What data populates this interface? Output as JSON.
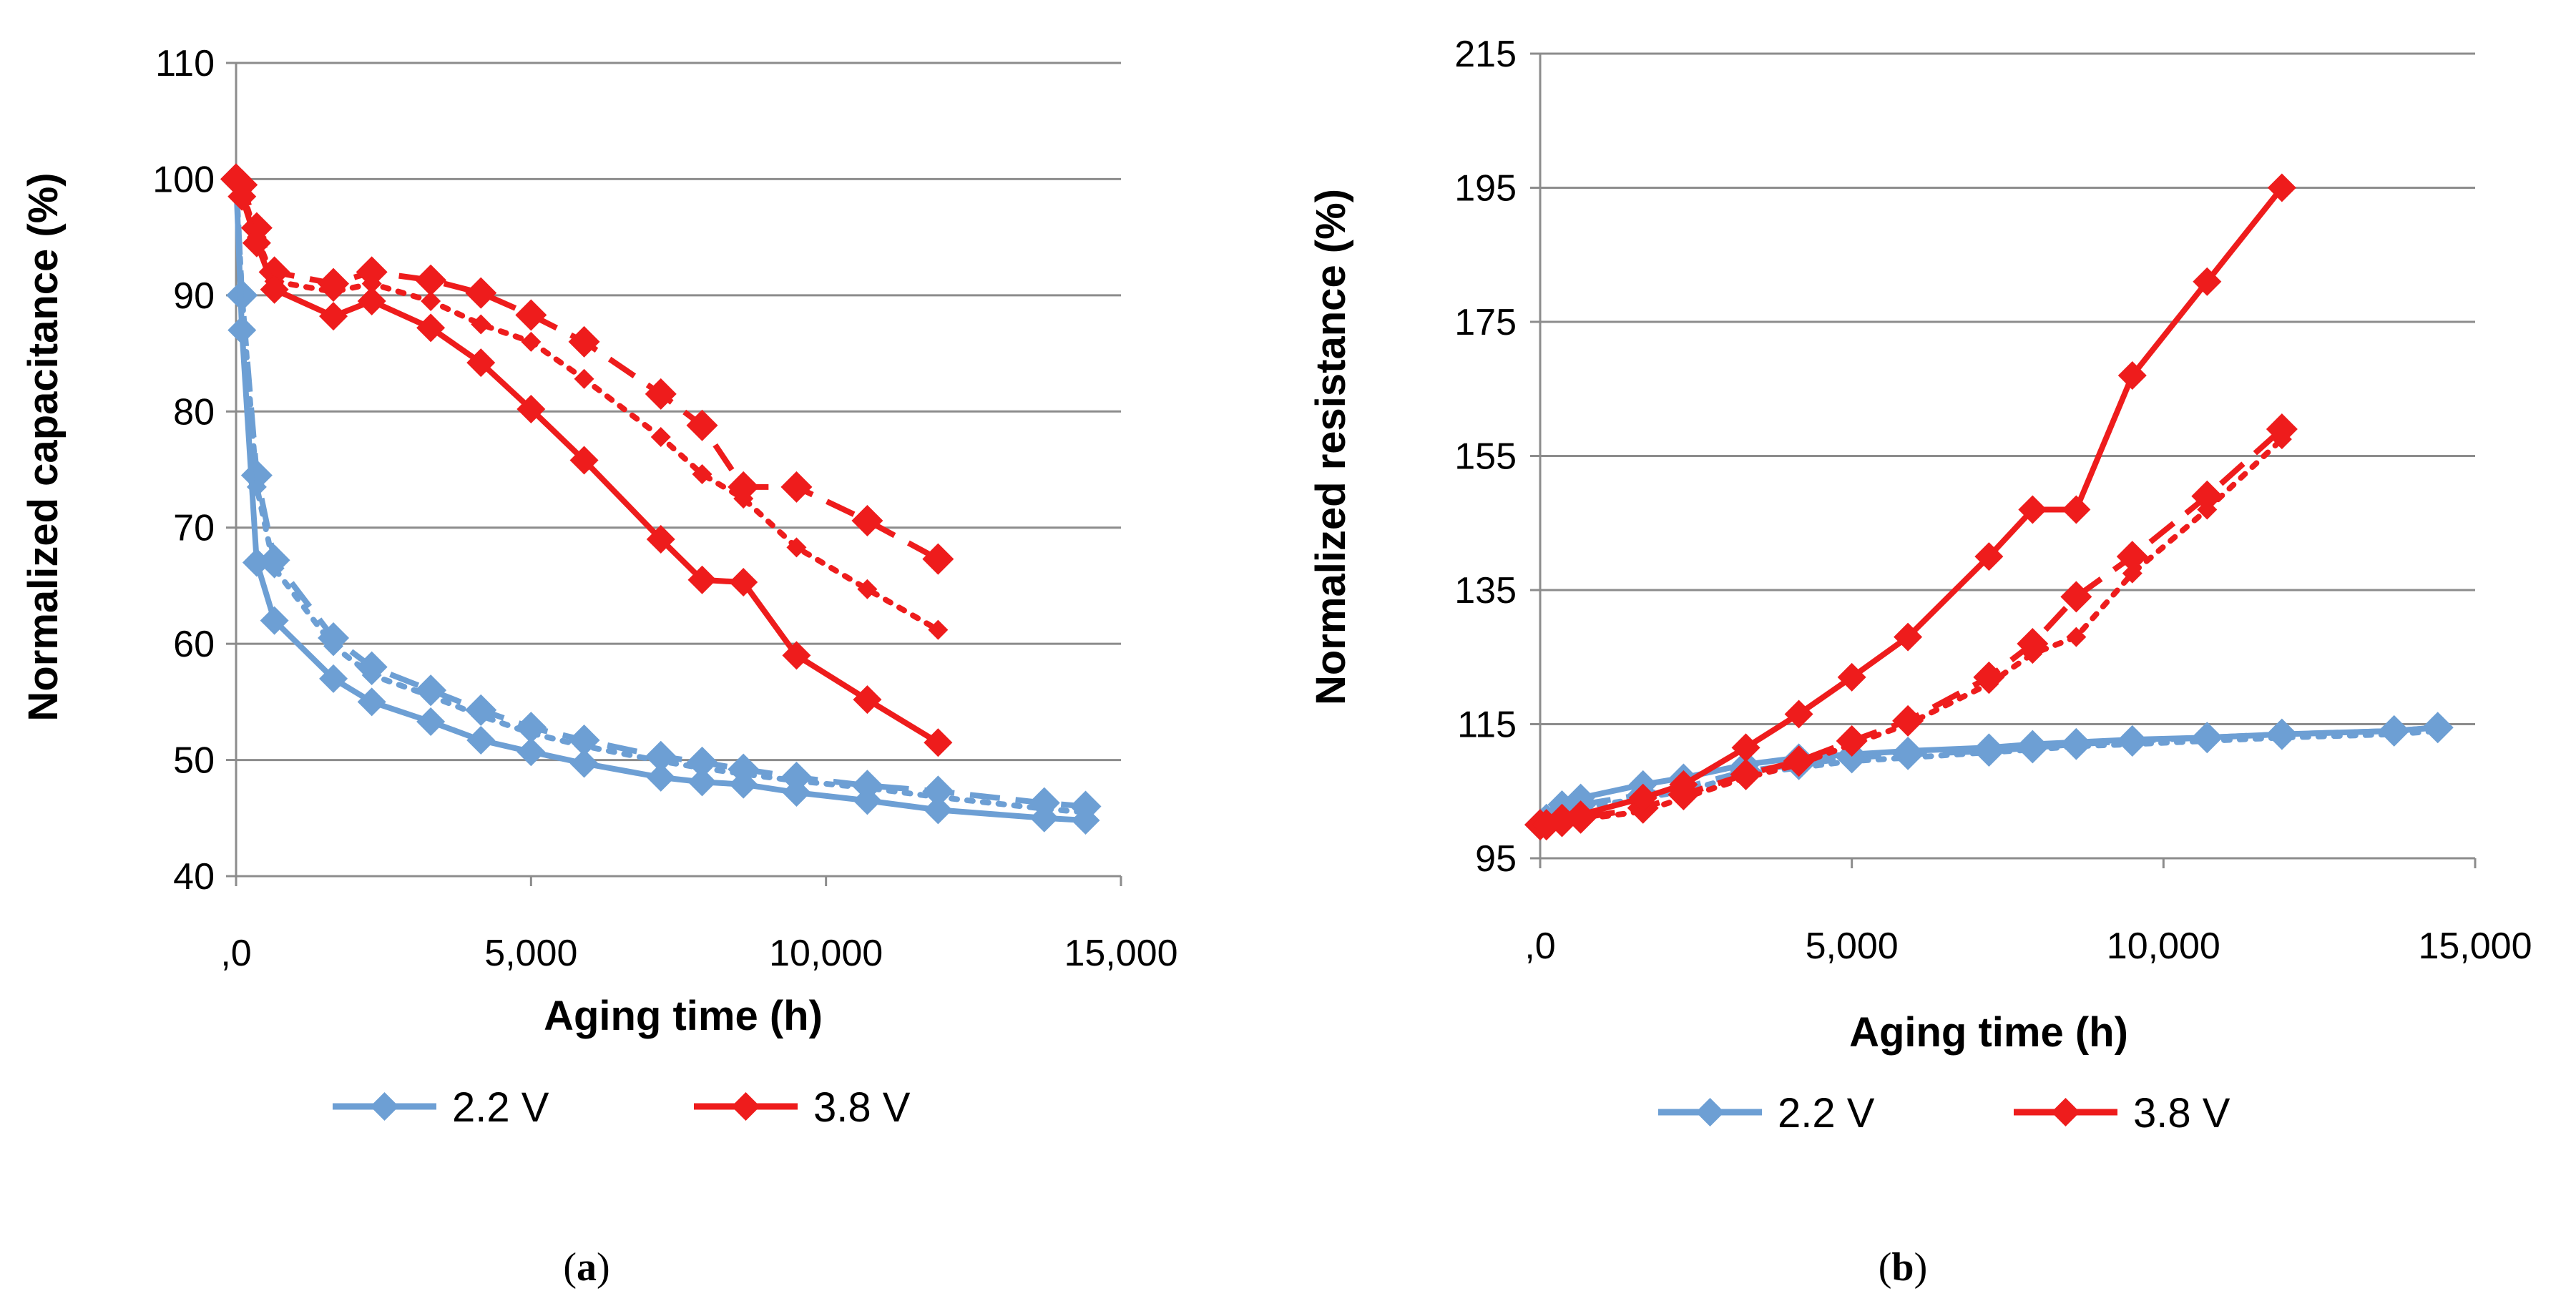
{
  "colors": {
    "blue": "#6d9fd4",
    "red": "#ee1c1c",
    "grid": "#8c8c8c"
  },
  "chart_data": [
    {
      "type": "line",
      "id": "a",
      "caption_open": "(",
      "caption_letter": "a",
      "caption_close": ")",
      "xlabel": "Aging time (h)",
      "ylabel": "Normalized capacitance (%)",
      "xlim": [
        0,
        15000
      ],
      "ylim": [
        40,
        110
      ],
      "x_ticks": [
        0,
        5000,
        10000,
        15000
      ],
      "x_tick_labels": [
        ",0",
        "5,000",
        "10,000",
        "15,000"
      ],
      "y_ticks": [
        40,
        50,
        60,
        70,
        80,
        90,
        100,
        110
      ],
      "y_tick_labels": [
        "40",
        "50",
        "60",
        "70",
        "80",
        "90",
        "100",
        "110"
      ],
      "legend": [
        {
          "label": "2.2 V",
          "color": "blue"
        },
        {
          "label": "3.8 V",
          "color": "red"
        }
      ],
      "series": [
        {
          "name": "2.2 V solid",
          "color": "blue",
          "dash": "solid",
          "x": [
            0,
            100,
            350,
            650,
            1650,
            2300,
            3300,
            4150,
            5000,
            5900,
            7200,
            7900,
            8600,
            9500,
            10700,
            11900,
            13700,
            14400
          ],
          "y": [
            100,
            87,
            67,
            62,
            57,
            55,
            53.3,
            51.7,
            50.7,
            49.7,
            48.5,
            48.1,
            47.9,
            47.2,
            46.5,
            45.7,
            45,
            44.8
          ]
        },
        {
          "name": "2.2 V dashed",
          "color": "blue",
          "dash": "dash",
          "x": [
            0,
            100,
            350,
            650,
            1650,
            2300,
            3300,
            4150,
            5000,
            5900,
            7200,
            7900,
            8600,
            9500,
            10700,
            11900,
            13700,
            14400
          ],
          "y": [
            100,
            90,
            74.5,
            67.2,
            60.5,
            58,
            56,
            54.3,
            52.8,
            51.7,
            50.3,
            49.8,
            49.2,
            48.5,
            47.8,
            47.3,
            46.3,
            46
          ]
        },
        {
          "name": "2.2 V dotted",
          "color": "blue",
          "dash": "dot",
          "x": [
            0,
            100,
            350,
            650,
            1650,
            2300,
            3300,
            4150,
            5000,
            5900,
            7200,
            7900,
            8600,
            9500,
            10700,
            11900,
            13700,
            14400
          ],
          "y": [
            100,
            90,
            73.5,
            66.5,
            59.8,
            57.3,
            55.5,
            53.8,
            52.3,
            51.2,
            49.9,
            49.3,
            48.8,
            48.2,
            47.6,
            46.8,
            45.8,
            45.5
          ]
        },
        {
          "name": "3.8 V solid",
          "color": "red",
          "dash": "solid",
          "x": [
            0,
            100,
            350,
            650,
            1650,
            2300,
            3300,
            4150,
            5000,
            5900,
            7200,
            7900,
            8600,
            9500,
            10700,
            11900
          ],
          "y": [
            100,
            98.5,
            94.5,
            90.5,
            88.2,
            89.5,
            87.2,
            84.2,
            80.2,
            75.8,
            69,
            65.5,
            65.3,
            59,
            55.2,
            51.5
          ]
        },
        {
          "name": "3.8 V dashed",
          "color": "red",
          "dash": "dash",
          "x": [
            0,
            100,
            350,
            650,
            1650,
            2300,
            3300,
            4150,
            5000,
            5900,
            7200,
            7900,
            8600,
            9500,
            10700,
            11900
          ],
          "y": [
            100,
            99.5,
            95.8,
            92,
            91,
            92,
            91.3,
            90.2,
            88.3,
            86,
            81.5,
            78.8,
            73.5,
            73.5,
            70.6,
            67.3
          ]
        },
        {
          "name": "3.8 V dotted",
          "color": "red",
          "dash": "dot",
          "x": [
            0,
            100,
            350,
            650,
            1650,
            2300,
            3300,
            4150,
            5000,
            5900,
            7200,
            7900,
            8600,
            9500,
            10700,
            11900
          ],
          "y": [
            100,
            99,
            95,
            91.2,
            90.3,
            91,
            89.5,
            87.5,
            86,
            82.8,
            77.8,
            74.6,
            72.5,
            68.3,
            64.7,
            61.2
          ]
        }
      ]
    },
    {
      "type": "line",
      "id": "b",
      "caption_open": "(",
      "caption_letter": "b",
      "caption_close": ")",
      "xlabel": "Aging time (h)",
      "ylabel": "Normalized resistance (%)",
      "xlim": [
        0,
        15000
      ],
      "ylim": [
        95,
        215
      ],
      "x_ticks": [
        0,
        5000,
        10000,
        15000
      ],
      "x_tick_labels": [
        ",0",
        "5,000",
        "10,000",
        "15,000"
      ],
      "y_ticks": [
        95,
        115,
        135,
        155,
        175,
        195,
        215
      ],
      "y_tick_labels": [
        "95",
        "115",
        "135",
        "155",
        "175",
        "195",
        "215"
      ],
      "legend": [
        {
          "label": "2.2 V",
          "color": "blue"
        },
        {
          "label": "3.8 V",
          "color": "red"
        }
      ],
      "series": [
        {
          "name": "2.2 V solid",
          "color": "blue",
          "dash": "solid",
          "x": [
            0,
            100,
            350,
            650,
            1650,
            2300,
            3300,
            4150,
            5000,
            5900,
            7200,
            7900,
            8600,
            9500,
            10700,
            11900,
            13700,
            14400
          ],
          "y": [
            100,
            101,
            103,
            104,
            106,
            107,
            109,
            110,
            110.5,
            111,
            111.5,
            112,
            112.3,
            112.7,
            113,
            113.5,
            114,
            114.5
          ]
        },
        {
          "name": "2.2 V dashed",
          "color": "blue",
          "dash": "dash",
          "x": [
            0,
            100,
            350,
            650,
            1650,
            2300,
            3300,
            4150,
            5000,
            5900,
            7200,
            7900,
            8600,
            9500,
            10700,
            11900,
            13700,
            14400
          ],
          "y": [
            100,
            100.5,
            102,
            103,
            104.5,
            105.5,
            108,
            109,
            110,
            110.5,
            111,
            111.5,
            112,
            112.5,
            113,
            113.5,
            114,
            114.5
          ]
        },
        {
          "name": "2.2 V dotted",
          "color": "blue",
          "dash": "dot",
          "x": [
            0,
            100,
            350,
            650,
            1650,
            2300,
            3300,
            4150,
            5000,
            5900,
            7200,
            7900,
            8600,
            9500,
            10700,
            11900,
            13700,
            14400
          ],
          "y": [
            100,
            100.2,
            101.5,
            102.5,
            104,
            105,
            107.5,
            108.5,
            109.5,
            110,
            110.8,
            111.2,
            111.7,
            112,
            112.5,
            113,
            113.5,
            114
          ]
        },
        {
          "name": "3.8 V solid",
          "color": "red",
          "dash": "solid",
          "x": [
            0,
            100,
            350,
            650,
            1650,
            2300,
            3300,
            4150,
            5000,
            5900,
            7200,
            7900,
            8600,
            9500,
            10700,
            11900
          ],
          "y": [
            100,
            100,
            101,
            101.5,
            104,
            106,
            111.5,
            116.5,
            122,
            128,
            140,
            147,
            147,
            167,
            181,
            195
          ]
        },
        {
          "name": "3.8 V dashed",
          "color": "red",
          "dash": "dash",
          "x": [
            0,
            100,
            350,
            650,
            1650,
            2300,
            3300,
            4150,
            5000,
            5900,
            7200,
            7900,
            8600,
            9500,
            10700,
            11900
          ],
          "y": [
            100,
            100,
            100.5,
            101,
            102.5,
            104.5,
            107.5,
            109.5,
            112.5,
            115.5,
            122,
            127,
            134,
            140,
            149,
            159
          ]
        },
        {
          "name": "3.8 V dotted",
          "color": "red",
          "dash": "dot",
          "x": [
            0,
            100,
            350,
            650,
            1650,
            2300,
            3300,
            4150,
            5000,
            5900,
            7200,
            7900,
            8600,
            9500,
            10700,
            11900
          ],
          "y": [
            100,
            100,
            100.3,
            100.8,
            102,
            104,
            107,
            109,
            112,
            115,
            121,
            125.5,
            128,
            137.5,
            147,
            157.5
          ]
        }
      ]
    }
  ]
}
